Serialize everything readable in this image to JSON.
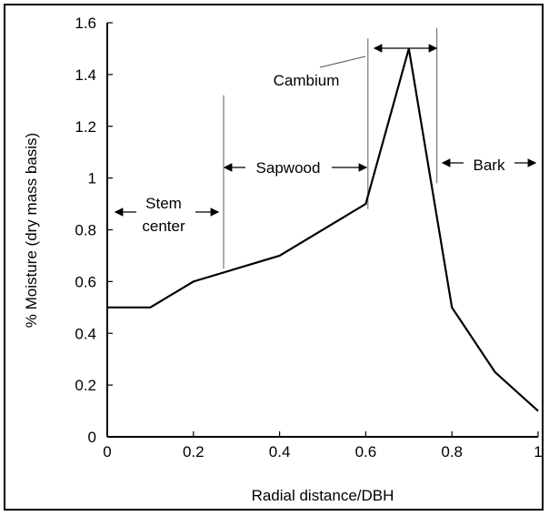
{
  "chart_data": {
    "type": "line",
    "title": "",
    "xlabel": "Radial distance/DBH",
    "ylabel": "% Moisture (dry mass basis)",
    "xlim": [
      0,
      1
    ],
    "ylim": [
      0,
      1.6
    ],
    "x_ticks": [
      "0",
      "0.2",
      "0.4",
      "0.6",
      "0.8",
      "1"
    ],
    "y_ticks": [
      "0",
      "0.2",
      "0.4",
      "0.6",
      "0.8",
      "1",
      "1.2",
      "1.4",
      "1.6"
    ],
    "grid": false,
    "series": [
      {
        "x": [
          0,
          0.1,
          0.2,
          0.4,
          0.6,
          0.7,
          0.8,
          0.9,
          1.0
        ],
        "y": [
          0.5,
          0.5,
          0.6,
          0.7,
          0.9,
          1.5,
          0.5,
          0.25,
          0.1
        ]
      }
    ],
    "annotations": {
      "stem_center_line1": "Stem",
      "stem_center_line2": "center",
      "sapwood": "Sapwood",
      "cambium": "Cambium",
      "bark": "Bark"
    }
  }
}
